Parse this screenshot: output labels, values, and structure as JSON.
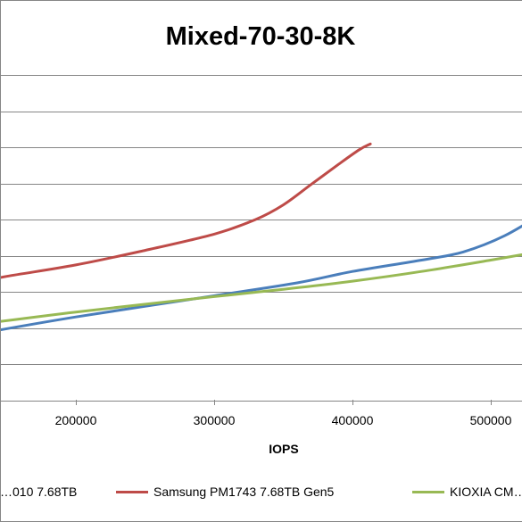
{
  "chart_data": {
    "type": "line",
    "title": "Mixed-70-30-8K",
    "xlabel": "IOPS",
    "ylabel": "",
    "x_ticks": [
      "200000",
      "300000",
      "400000",
      "500000"
    ],
    "grid": "horizontal",
    "legend_position": "bottom",
    "series": [
      {
        "name": "…010 7.68TB",
        "color": "#4a7ebb",
        "points": [
          [
            125000,
            330
          ],
          [
            200000,
            352
          ],
          [
            300000,
            378
          ],
          [
            360000,
            394
          ],
          [
            400000,
            408
          ],
          [
            450000,
            422
          ],
          [
            480000,
            432
          ],
          [
            510000,
            452
          ],
          [
            540000,
            482
          ]
        ]
      },
      {
        "name": "Samsung PM1743 7.68TB Gen5",
        "color": "#be4b48",
        "points": [
          [
            125000,
            393
          ],
          [
            150000,
            402
          ],
          [
            200000,
            416
          ],
          [
            250000,
            434
          ],
          [
            300000,
            454
          ],
          [
            330000,
            472
          ],
          [
            350000,
            490
          ],
          [
            370000,
            515
          ],
          [
            390000,
            540
          ],
          [
            405000,
            558
          ],
          [
            413000,
            565
          ]
        ]
      },
      {
        "name": "KIOXIA CM…",
        "color": "#98b954",
        "points": [
          [
            125000,
            342
          ],
          [
            200000,
            358
          ],
          [
            300000,
            377
          ],
          [
            350000,
            386
          ],
          [
            400000,
            396
          ],
          [
            450000,
            408
          ],
          [
            500000,
            422
          ],
          [
            540000,
            434
          ]
        ]
      }
    ],
    "ylim": [
      250,
      650
    ]
  }
}
